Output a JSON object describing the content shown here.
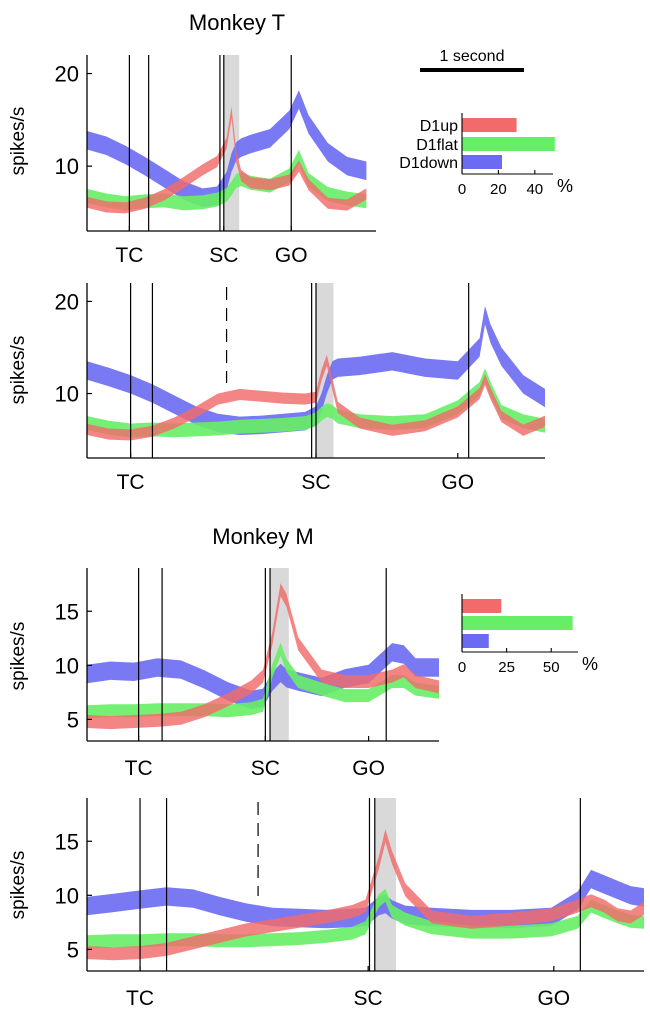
{
  "colors": {
    "d1up": "#f26a6a",
    "d1flat": "#66ee66",
    "d1down": "#6a6af2",
    "shade": "#d9d9d9",
    "axis": "#000000"
  },
  "scale_bar": {
    "label": "1 second"
  },
  "chart_data": [
    {
      "type": "area",
      "title": "Monkey T",
      "xlabel": "",
      "ylabel": "spikes/s",
      "yticks": [
        10,
        20
      ],
      "ylim": [
        3,
        22
      ],
      "xlim": [
        0,
        3.0
      ],
      "events": [
        {
          "label": "TC",
          "t": 0.44,
          "marker": 0.44
        },
        {
          "label": "SC",
          "t": 1.42,
          "marker": 1.42
        },
        {
          "label": "GO",
          "t": 2.12,
          "marker": 2.12
        }
      ],
      "event_lines": [
        {
          "t": 0.44,
          "style": "solid"
        },
        {
          "t": 0.64,
          "style": "solid"
        },
        {
          "t": 1.38,
          "style": "solid"
        },
        {
          "t": 1.42,
          "style": "solid"
        },
        {
          "t": 2.12,
          "style": "solid"
        }
      ],
      "shade": [
        1.42,
        1.58
      ],
      "series": [
        {
          "name": "D1up",
          "width": 1.2,
          "x": [
            0,
            0.2,
            0.4,
            0.6,
            0.8,
            1.0,
            1.2,
            1.35,
            1.45,
            1.5,
            1.55,
            1.6,
            1.7,
            1.9,
            2.1,
            2.2,
            2.3,
            2.5,
            2.7,
            2.9
          ],
          "y": [
            6.1,
            5.6,
            5.5,
            6.0,
            6.9,
            8.2,
            9.6,
            10.5,
            12.5,
            15.8,
            11.0,
            9.0,
            8.2,
            8.0,
            8.5,
            10.0,
            8.0,
            6.0,
            5.8,
            7.0
          ]
        },
        {
          "name": "D1flat",
          "width": 1.5,
          "x": [
            0,
            0.2,
            0.4,
            0.6,
            0.8,
            1.0,
            1.2,
            1.35,
            1.45,
            1.5,
            1.55,
            1.6,
            1.7,
            1.9,
            2.1,
            2.2,
            2.3,
            2.5,
            2.7,
            2.9
          ],
          "y": [
            6.8,
            6.3,
            6.0,
            6.2,
            6.3,
            6.0,
            6.1,
            6.4,
            6.9,
            7.6,
            8.4,
            8.6,
            8.2,
            7.9,
            9.0,
            11.0,
            8.5,
            7.0,
            6.5,
            6.2
          ]
        },
        {
          "name": "D1down",
          "width": 2.0,
          "x": [
            0,
            0.2,
            0.4,
            0.6,
            0.8,
            1.0,
            1.2,
            1.35,
            1.45,
            1.5,
            1.55,
            1.6,
            1.7,
            1.9,
            2.1,
            2.2,
            2.3,
            2.5,
            2.7,
            2.9
          ],
          "y": [
            12.8,
            12.2,
            11.2,
            10.0,
            8.7,
            7.4,
            6.6,
            6.8,
            8.4,
            10.4,
            11.6,
            12.0,
            12.4,
            13.0,
            15.0,
            17.2,
            14.5,
            11.5,
            10.0,
            9.5
          ]
        }
      ]
    },
    {
      "type": "area",
      "title": "",
      "xlabel": "",
      "ylabel": "spikes/s",
      "yticks": [
        10,
        20
      ],
      "ylim": [
        3,
        22
      ],
      "xlim": [
        0,
        4.2
      ],
      "events": [
        {
          "label": "TC",
          "t": 0.4,
          "marker": 0.4
        },
        {
          "label": "SC",
          "t": 2.1,
          "marker": 2.1
        },
        {
          "label": "GO",
          "t": 3.4,
          "marker": 3.4
        }
      ],
      "event_lines": [
        {
          "t": 0.4,
          "style": "solid"
        },
        {
          "t": 0.6,
          "style": "solid"
        },
        {
          "t": 1.28,
          "style": "dashed"
        },
        {
          "t": 2.06,
          "style": "solid"
        },
        {
          "t": 2.1,
          "style": "solid"
        },
        {
          "t": 3.5,
          "style": "solid"
        }
      ],
      "shade": [
        2.1,
        2.26
      ],
      "series": [
        {
          "name": "D1up",
          "width": 1.2,
          "x": [
            0,
            0.2,
            0.4,
            0.6,
            0.8,
            1.0,
            1.2,
            1.4,
            1.6,
            1.8,
            2.0,
            2.1,
            2.15,
            2.2,
            2.25,
            2.3,
            2.5,
            2.8,
            3.1,
            3.4,
            3.6,
            3.65,
            3.7,
            3.8,
            4.0,
            4.2
          ],
          "y": [
            6.1,
            5.6,
            5.5,
            5.9,
            6.8,
            8.0,
            9.4,
            9.9,
            9.7,
            9.5,
            9.4,
            9.6,
            12.0,
            13.6,
            11.0,
            8.5,
            6.8,
            6.0,
            6.5,
            8.0,
            10.0,
            11.5,
            10.0,
            7.5,
            6.0,
            7.0
          ]
        },
        {
          "name": "D1flat",
          "width": 1.5,
          "x": [
            0,
            0.2,
            0.4,
            0.6,
            0.8,
            1.0,
            1.2,
            1.4,
            1.6,
            1.8,
            2.0,
            2.1,
            2.15,
            2.2,
            2.25,
            2.3,
            2.5,
            2.8,
            3.1,
            3.4,
            3.6,
            3.65,
            3.7,
            3.8,
            4.0,
            4.2
          ],
          "y": [
            6.8,
            6.3,
            6.0,
            6.1,
            6.0,
            6.1,
            6.2,
            6.4,
            6.5,
            6.6,
            6.8,
            7.2,
            7.8,
            8.2,
            8.0,
            7.5,
            7.0,
            6.8,
            7.0,
            8.5,
            10.5,
            12.0,
            10.5,
            8.0,
            7.0,
            6.5
          ]
        },
        {
          "name": "D1down",
          "width": 2.0,
          "x": [
            0,
            0.2,
            0.4,
            0.6,
            0.8,
            1.0,
            1.2,
            1.4,
            1.6,
            1.8,
            2.0,
            2.1,
            2.15,
            2.2,
            2.25,
            2.3,
            2.5,
            2.8,
            3.1,
            3.4,
            3.6,
            3.65,
            3.7,
            3.8,
            4.0,
            4.2
          ],
          "y": [
            12.5,
            11.8,
            11.0,
            10.0,
            8.8,
            7.6,
            6.8,
            6.5,
            6.6,
            6.8,
            7.0,
            7.6,
            9.0,
            11.0,
            12.5,
            12.8,
            13.0,
            13.5,
            12.8,
            12.5,
            15.0,
            18.5,
            16.5,
            14.0,
            11.0,
            9.5
          ]
        }
      ]
    },
    {
      "type": "area",
      "title": "Monkey M",
      "xlabel": "",
      "ylabel": "spikes/s",
      "yticks": [
        5,
        10,
        15
      ],
      "ylim": [
        3,
        19
      ],
      "xlim": [
        0,
        3.0
      ],
      "events": [
        {
          "label": "TC",
          "t": 0.44,
          "marker": 0.44
        },
        {
          "label": "SC",
          "t": 1.52,
          "marker": 1.52
        },
        {
          "label": "GO",
          "t": 2.4,
          "marker": 2.4
        }
      ],
      "event_lines": [
        {
          "t": 0.44,
          "style": "solid"
        },
        {
          "t": 0.64,
          "style": "solid"
        },
        {
          "t": 1.52,
          "style": "solid"
        },
        {
          "t": 1.56,
          "style": "solid"
        },
        {
          "t": 2.55,
          "style": "solid"
        }
      ],
      "shade": [
        1.56,
        1.72
      ],
      "series": [
        {
          "name": "D1up",
          "width": 1.2,
          "x": [
            0,
            0.2,
            0.4,
            0.6,
            0.8,
            1.0,
            1.2,
            1.4,
            1.5,
            1.58,
            1.65,
            1.7,
            1.8,
            2.0,
            2.2,
            2.4,
            2.6,
            2.7,
            2.8,
            3.0
          ],
          "y": [
            4.8,
            4.7,
            4.8,
            4.9,
            5.1,
            5.8,
            6.8,
            8.0,
            9.0,
            12.5,
            17.0,
            16.0,
            12.0,
            9.0,
            8.5,
            8.5,
            9.0,
            9.5,
            8.5,
            8.0
          ]
        },
        {
          "name": "D1flat",
          "width": 1.2,
          "x": [
            0,
            0.2,
            0.4,
            0.6,
            0.8,
            1.0,
            1.2,
            1.4,
            1.5,
            1.58,
            1.65,
            1.7,
            1.8,
            2.0,
            2.2,
            2.4,
            2.6,
            2.7,
            2.8,
            3.0
          ],
          "y": [
            5.7,
            5.8,
            5.8,
            5.9,
            5.9,
            5.9,
            5.8,
            6.0,
            6.3,
            9.5,
            11.5,
            10.0,
            8.5,
            7.8,
            7.2,
            7.2,
            8.5,
            8.5,
            7.8,
            7.5
          ]
        },
        {
          "name": "D1down",
          "width": 1.7,
          "x": [
            0,
            0.2,
            0.4,
            0.6,
            0.8,
            1.0,
            1.2,
            1.4,
            1.5,
            1.58,
            1.65,
            1.7,
            1.8,
            2.0,
            2.2,
            2.4,
            2.6,
            2.7,
            2.8,
            3.0
          ],
          "y": [
            9.2,
            9.5,
            9.4,
            9.8,
            9.6,
            8.7,
            7.6,
            6.8,
            7.0,
            8.5,
            9.3,
            8.8,
            8.5,
            8.0,
            8.8,
            9.2,
            11.2,
            11.0,
            9.8,
            9.8
          ]
        }
      ]
    },
    {
      "type": "area",
      "title": "",
      "xlabel": "",
      "ylabel": "spikes/s",
      "yticks": [
        5,
        10,
        15
      ],
      "ylim": [
        3,
        19
      ],
      "xlim": [
        0,
        4.2
      ],
      "events": [
        {
          "label": "TC",
          "t": 0.4,
          "marker": 0.4
        },
        {
          "label": "SC",
          "t": 2.12,
          "marker": 2.12
        },
        {
          "label": "GO",
          "t": 3.52,
          "marker": 3.52
        }
      ],
      "event_lines": [
        {
          "t": 0.4,
          "style": "solid"
        },
        {
          "t": 0.6,
          "style": "solid"
        },
        {
          "t": 1.29,
          "style": "dashed"
        },
        {
          "t": 2.13,
          "style": "solid"
        },
        {
          "t": 2.17,
          "style": "solid"
        },
        {
          "t": 3.72,
          "style": "solid"
        }
      ],
      "shade": [
        2.17,
        2.33
      ],
      "series": [
        {
          "name": "D1up",
          "width": 1.2,
          "x": [
            0,
            0.2,
            0.4,
            0.6,
            0.8,
            1.0,
            1.2,
            1.4,
            1.6,
            1.8,
            2.0,
            2.1,
            2.2,
            2.25,
            2.3,
            2.4,
            2.6,
            2.9,
            3.2,
            3.5,
            3.7,
            3.8,
            3.9,
            4.0,
            4.1,
            4.2
          ],
          "y": [
            4.7,
            4.6,
            4.7,
            5.0,
            5.6,
            6.2,
            6.8,
            7.2,
            7.6,
            8.0,
            8.5,
            9.0,
            13.0,
            15.5,
            13.5,
            10.5,
            8.0,
            7.5,
            7.8,
            8.2,
            9.0,
            9.5,
            9.0,
            8.2,
            8.0,
            8.8
          ]
        },
        {
          "name": "D1flat",
          "width": 1.2,
          "x": [
            0,
            0.2,
            0.4,
            0.6,
            0.8,
            1.0,
            1.2,
            1.4,
            1.6,
            1.8,
            2.0,
            2.1,
            2.2,
            2.25,
            2.3,
            2.4,
            2.6,
            2.9,
            3.2,
            3.5,
            3.7,
            3.8,
            3.9,
            4.0,
            4.1,
            4.2
          ],
          "y": [
            5.7,
            5.8,
            5.8,
            5.9,
            5.9,
            5.8,
            5.8,
            5.9,
            6.0,
            6.2,
            6.5,
            7.0,
            9.5,
            10.0,
            8.5,
            7.8,
            7.0,
            6.6,
            6.6,
            6.8,
            7.5,
            9.0,
            8.5,
            8.0,
            7.6,
            7.5
          ]
        },
        {
          "name": "D1down",
          "width": 1.7,
          "x": [
            0,
            0.2,
            0.4,
            0.6,
            0.8,
            1.0,
            1.2,
            1.4,
            1.6,
            1.8,
            2.0,
            2.1,
            2.2,
            2.25,
            2.3,
            2.4,
            2.6,
            2.9,
            3.2,
            3.5,
            3.7,
            3.8,
            3.9,
            4.0,
            4.1,
            4.2
          ],
          "y": [
            9.0,
            9.3,
            9.6,
            9.9,
            9.7,
            9.0,
            8.4,
            8.0,
            7.9,
            7.8,
            7.9,
            8.0,
            9.0,
            9.2,
            8.7,
            8.2,
            8.0,
            7.8,
            7.8,
            8.0,
            9.5,
            11.5,
            11.0,
            10.5,
            10.0,
            9.8
          ]
        }
      ]
    },
    {
      "type": "bar",
      "orientation": "horizontal",
      "title": "",
      "categories": [
        "D1up",
        "D1flat",
        "D1down"
      ],
      "values": [
        30,
        51,
        22
      ],
      "xticks": [
        0,
        20,
        40
      ],
      "xlim": [
        0,
        50
      ],
      "unit_label": "%"
    },
    {
      "type": "bar",
      "orientation": "horizontal",
      "title": "",
      "categories": [
        "",
        "",
        ""
      ],
      "values": [
        22,
        62,
        15
      ],
      "xticks": [
        0,
        25,
        50
      ],
      "xlim": [
        0,
        65
      ],
      "unit_label": "%"
    }
  ]
}
